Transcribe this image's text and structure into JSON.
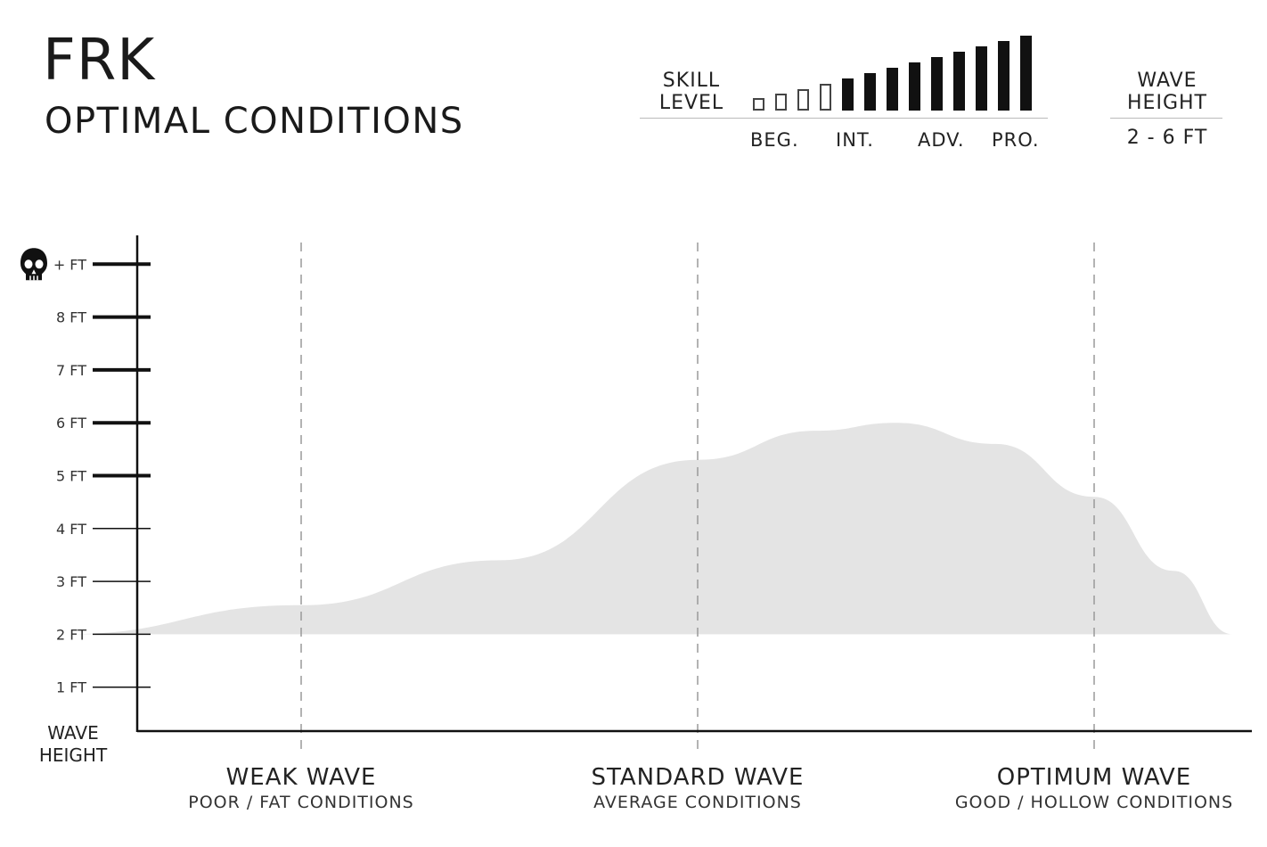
{
  "header": {
    "title": "FRK",
    "subtitle": "OPTIMAL CONDITIONS"
  },
  "skill": {
    "label_line1": "SKILL",
    "label_line2": "LEVEL",
    "bars": [
      {
        "filled": false,
        "level": 0.17
      },
      {
        "filled": false,
        "level": 0.23
      },
      {
        "filled": false,
        "level": 0.29
      },
      {
        "filled": false,
        "level": 0.36
      },
      {
        "filled": true,
        "level": 0.43
      },
      {
        "filled": true,
        "level": 0.5
      },
      {
        "filled": true,
        "level": 0.57
      },
      {
        "filled": true,
        "level": 0.64
      },
      {
        "filled": true,
        "level": 0.71
      },
      {
        "filled": true,
        "level": 0.79
      },
      {
        "filled": true,
        "level": 0.86
      },
      {
        "filled": true,
        "level": 0.93
      },
      {
        "filled": true,
        "level": 1.0
      }
    ],
    "levels": [
      "BEG.",
      "INT.",
      "ADV.",
      "PRO."
    ]
  },
  "wave_height_box": {
    "label_line1": "WAVE",
    "label_line2": "HEIGHT",
    "value": "2 - 6 FT"
  },
  "colors": {
    "area_fill": "#e4e4e4",
    "axis": "#111111",
    "text": "#1a1a1a",
    "dashed": "#9a9a9a"
  },
  "icons": {
    "max_height_marker": "skull-icon"
  },
  "chart_data": {
    "type": "area",
    "ylabel_line1": "WAVE",
    "ylabel_line2": "HEIGHT",
    "ylim": [
      0,
      9
    ],
    "y_ticks": [
      {
        "value": 1,
        "label": "1 FT",
        "bold": false
      },
      {
        "value": 2,
        "label": "2 FT",
        "bold": false
      },
      {
        "value": 3,
        "label": "3 FT",
        "bold": false
      },
      {
        "value": 4,
        "label": "4 FT",
        "bold": false
      },
      {
        "value": 5,
        "label": "5 FT",
        "bold": true
      },
      {
        "value": 6,
        "label": "6 FT",
        "bold": true
      },
      {
        "value": 7,
        "label": "7 FT",
        "bold": true
      },
      {
        "value": 8,
        "label": "8 FT",
        "bold": true
      },
      {
        "value": 9,
        "label": "+ FT",
        "bold": true
      }
    ],
    "categories": [
      {
        "name": "WEAK WAVE",
        "sub": "POOR / FAT CONDITIONS"
      },
      {
        "name": "STANDARD WAVE",
        "sub": "AVERAGE CONDITIONS"
      },
      {
        "name": "OPTIMUM WAVE",
        "sub": "GOOD / HOLLOW CONDITIONS"
      }
    ],
    "xlim": [
      0.25,
      3.35
    ],
    "area": {
      "baseline": 2,
      "upper": [
        [
          0.4,
          2.0
        ],
        [
          1.0,
          2.55
        ],
        [
          1.5,
          3.4
        ],
        [
          2.0,
          5.3
        ],
        [
          2.3,
          5.85
        ],
        [
          2.5,
          6.0
        ],
        [
          2.75,
          5.6
        ],
        [
          3.0,
          4.6
        ],
        [
          3.2,
          3.2
        ],
        [
          3.35,
          2.0
        ]
      ]
    },
    "grid": false
  }
}
